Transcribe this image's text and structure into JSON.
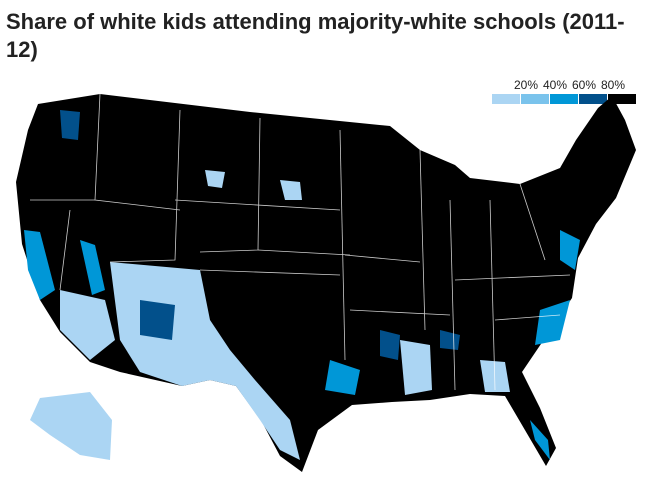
{
  "title": "Share of white kids attending majority-white schools (2011-12)",
  "legend": {
    "labels": [
      "20%",
      "40%",
      "60%",
      "80%"
    ],
    "colors": [
      "#abd5f3",
      "#7ac3ec",
      "#0097d7",
      "#02508b",
      "#000000"
    ]
  }
}
